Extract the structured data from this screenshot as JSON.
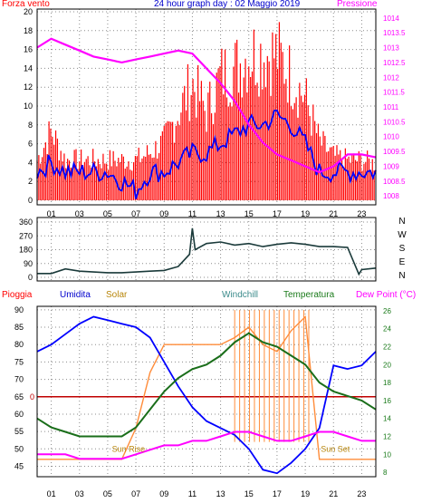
{
  "header": {
    "left_label": "Forza vento",
    "title": "24 hour graph day : 02 Maggio 2019",
    "right_label": "Pressione"
  },
  "wind_dir_labels": [
    "N",
    "W",
    "S",
    "E",
    "N"
  ],
  "bottom_labels": {
    "pioggia": "Pioggia",
    "umidita": "Umidita",
    "solar": "Solar",
    "windchill": "Windchill",
    "temperatura": "Temperatura",
    "dewpoint": "Dew Point (°C)",
    "sunrise": "Sun Rise",
    "sunset": "Sun Set"
  },
  "colors": {
    "wind": "#ff0000",
    "gust": "#0000ff",
    "pressure": "#ff00ff",
    "direction": "#1a3a3a",
    "humidity": "#0000ff",
    "solar": "#ff8c3a",
    "windchill": "#0b6b36",
    "temperature": "#1a6e1a",
    "dewpoint": "#ff00ff",
    "rain": "#c00000",
    "grid": "#8c8c8c"
  },
  "chart_data": [
    {
      "type": "line",
      "name": "wind-pressure",
      "x_ticks": [
        "01",
        "03",
        "05",
        "07",
        "09",
        "11",
        "13",
        "15",
        "17",
        "19",
        "21",
        "23"
      ],
      "y_left_ticks": [
        "0",
        "2",
        "4",
        "6",
        "8",
        "10",
        "12",
        "14",
        "16",
        "18",
        "20"
      ],
      "y_left_range": [
        0,
        20
      ],
      "y_right_ticks": [
        "1008",
        "1008.5",
        "1009",
        "1009.5",
        "1010",
        "1010.5",
        "1011",
        "1011.5",
        "1012",
        "1012.5",
        "1013",
        "1013.5",
        "1014"
      ],
      "y_right_range": [
        1007.7,
        1014.3
      ],
      "pressure_x": [
        0,
        1,
        2,
        3,
        4,
        5,
        6,
        7,
        8,
        9,
        10,
        11,
        12,
        13,
        14,
        15,
        16,
        17,
        18,
        19,
        20,
        21,
        22,
        23,
        24
      ],
      "pressure": [
        1013.0,
        1013.3,
        1013.1,
        1012.9,
        1012.7,
        1012.6,
        1012.5,
        1012.6,
        1012.7,
        1012.8,
        1012.9,
        1012.8,
        1012.3,
        1011.8,
        1011.2,
        1010.4,
        1009.8,
        1009.4,
        1009.2,
        1009.0,
        1008.8,
        1009.0,
        1009.4,
        1009.4,
        1009.3
      ],
      "wind_x": [
        0,
        1,
        2,
        3,
        4,
        5,
        6,
        7,
        8,
        9,
        10,
        11,
        12,
        13,
        14,
        15,
        16,
        17,
        18,
        19,
        20,
        21,
        22,
        23,
        24
      ],
      "wind_avg": [
        3,
        4,
        3,
        3,
        3,
        3,
        2,
        1,
        3,
        3,
        4,
        5,
        5,
        6,
        7,
        8,
        8,
        9,
        8,
        6,
        3,
        3,
        3,
        3,
        3
      ],
      "wind_max": [
        5.5,
        9.5,
        5.5,
        5.5,
        5.5,
        5.5,
        5.5,
        5.5,
        6.5,
        8,
        12,
        16,
        12,
        17,
        18,
        20,
        20,
        20,
        17,
        14,
        8,
        6,
        5.5,
        5.5,
        5
      ]
    },
    {
      "type": "line",
      "name": "wind-direction",
      "y_ticks": [
        "0",
        "90",
        "180",
        "270",
        "360"
      ],
      "y_range": [
        0,
        360
      ],
      "x": [
        0,
        1,
        2,
        3,
        4,
        5,
        6,
        7,
        8,
        9,
        10,
        10.8,
        11,
        11.2,
        12,
        13,
        14,
        15,
        16,
        17,
        18,
        19,
        20,
        21,
        22,
        22.8,
        23,
        24
      ],
      "direction": [
        25,
        25,
        55,
        40,
        35,
        30,
        30,
        35,
        40,
        45,
        70,
        150,
        320,
        180,
        220,
        230,
        210,
        220,
        200,
        215,
        225,
        215,
        200,
        200,
        195,
        20,
        50,
        60
      ]
    },
    {
      "type": "line",
      "name": "humidity-temperature",
      "y_left_ticks": [
        "45",
        "50",
        "55",
        "60",
        "65",
        "70",
        "75",
        "80",
        "85",
        "90"
      ],
      "y_left_range": [
        42,
        91
      ],
      "y_right_ticks": [
        "8",
        "10",
        "12",
        "14",
        "16",
        "18",
        "20",
        "22",
        "24",
        "26"
      ],
      "y_right_range": [
        7.5,
        26.5
      ],
      "rain_value": 0,
      "x": [
        0,
        1,
        2,
        3,
        4,
        5,
        6,
        7,
        8,
        9,
        10,
        11,
        12,
        13,
        14,
        15,
        16,
        17,
        18,
        19,
        20,
        21,
        22,
        23,
        24
      ],
      "humidity": [
        78,
        80,
        83,
        86,
        88,
        87,
        86,
        85,
        82,
        75,
        68,
        62,
        58,
        56,
        54,
        50,
        44,
        43,
        46,
        50,
        56,
        74,
        73,
        74,
        78
      ],
      "temperature": [
        14,
        13,
        12.5,
        12,
        12,
        12,
        12,
        13,
        15,
        17,
        18.5,
        19.5,
        20,
        21,
        22.5,
        23.5,
        22.5,
        22,
        21,
        20,
        18,
        17,
        16.5,
        16,
        15
      ],
      "dewpoint": [
        10,
        10,
        10,
        9.5,
        9.5,
        9.5,
        9.5,
        10,
        10.5,
        11,
        11,
        11.5,
        11.5,
        12,
        12.5,
        12.5,
        12,
        11.5,
        11.5,
        12,
        12.5,
        12.5,
        12,
        11.5,
        11.5
      ],
      "solar": [
        47,
        47,
        47,
        47,
        47,
        47,
        47,
        56,
        72,
        80,
        80,
        80,
        80,
        80,
        82,
        85,
        80,
        78,
        84,
        88,
        47,
        47,
        47,
        47,
        47
      ]
    }
  ]
}
